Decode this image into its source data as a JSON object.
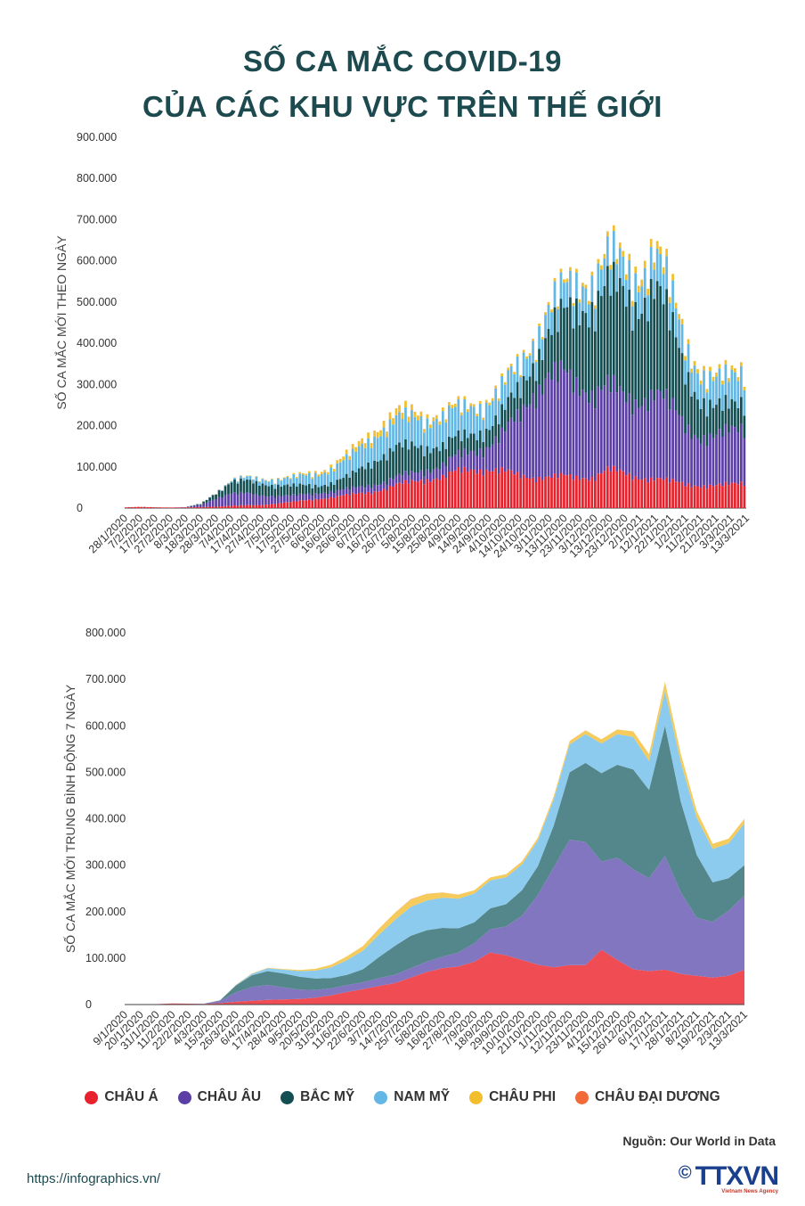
{
  "title_line1": "SỐ CA MẮC COVID-19",
  "title_line2": "CỦA CÁC KHU VỰC TRÊN THẾ GIỚI",
  "legend": [
    {
      "label": "CHÂU Á",
      "color": "#e8212c"
    },
    {
      "label": "CHÂU ÂU",
      "color": "#5b3ea6"
    },
    {
      "label": "BẮC MỸ",
      "color": "#134e52"
    },
    {
      "label": "NAM MỸ",
      "color": "#62b7e4"
    },
    {
      "label": "CHÂU PHI",
      "color": "#f2be2c"
    },
    {
      "label": "CHÂU ĐẠI DƯƠNG",
      "color": "#f26a3a"
    }
  ],
  "source": "Nguồn: Our World in Data",
  "url": "https://infographics.vn/",
  "logo": {
    "copyright": "©",
    "brand": "TTXVN",
    "subtitle": "Vietnam News Agency"
  },
  "chart_data": [
    {
      "type": "bar",
      "stacked": true,
      "ylabel": "SỐ CA MẮC MỚI THEO NGÀY",
      "ylim": [
        0,
        900000
      ],
      "yticks": [
        "0",
        "100.000",
        "200.000",
        "300.000",
        "400.000",
        "500.000",
        "600.000",
        "700.000",
        "800.000",
        "900.000"
      ],
      "categories": [
        "28/1/2020",
        "7/2/2020",
        "17/2/2020",
        "27/2/2020",
        "8/3/2020",
        "18/3/2020",
        "28/3/2020",
        "7/4/2020",
        "17/4/2020",
        "27/4/2020",
        "7/5/2020",
        "17/5/2020",
        "27/5/2020",
        "6/6/2020",
        "16/6/2020",
        "26/6/2020",
        "6/7/2020",
        "16/7/2020",
        "26/7/2020",
        "5/8/2020",
        "15/8/2020",
        "25/8/2020",
        "4/9/2020",
        "14/9/2020",
        "24/9/2020",
        "4/10/2020",
        "14/10/2020",
        "24/10/2020",
        "3/11/2020",
        "13/11/2020",
        "23/11/2020",
        "3/12/2020",
        "13/12/2020",
        "23/12/2020",
        "2/1/2021",
        "12/1/2021",
        "22/1/2021",
        "1/2/2021",
        "11/2/2021",
        "21/2/2021",
        "3/3/2021",
        "13/3/2021"
      ],
      "series": [
        {
          "name": "CHÂU Á",
          "values": [
            2000,
            3000,
            2000,
            1500,
            1500,
            2500,
            4000,
            6000,
            7000,
            8000,
            12000,
            16000,
            20000,
            25000,
            30000,
            35000,
            40000,
            48000,
            60000,
            68000,
            75000,
            80000,
            95000,
            100000,
            100000,
            95000,
            85000,
            80000,
            80000,
            82000,
            80000,
            80000,
            100000,
            90000,
            80000,
            75000,
            70000,
            65000,
            58000,
            55000,
            62000,
            70000
          ]
        },
        {
          "name": "CHÂU ÂU",
          "values": [
            0,
            0,
            0,
            0,
            1000,
            6000,
            22000,
            32000,
            30000,
            25000,
            20000,
            16000,
            15000,
            15000,
            15000,
            15000,
            18000,
            18000,
            20000,
            22000,
            25000,
            30000,
            40000,
            48000,
            60000,
            95000,
            150000,
            220000,
            260000,
            260000,
            240000,
            220000,
            215000,
            195000,
            200000,
            220000,
            200000,
            160000,
            125000,
            120000,
            140000,
            150000
          ]
        },
        {
          "name": "BẮC MỸ",
          "values": [
            0,
            0,
            0,
            0,
            0,
            3000,
            15000,
            30000,
            32000,
            30000,
            28000,
            25000,
            23000,
            20000,
            25000,
            35000,
            55000,
            70000,
            75000,
            70000,
            60000,
            50000,
            45000,
            45000,
            48000,
            55000,
            65000,
            80000,
            110000,
            150000,
            200000,
            230000,
            260000,
            260000,
            250000,
            280000,
            220000,
            150000,
            100000,
            75000,
            65000,
            70000
          ]
        },
        {
          "name": "NAM MỸ",
          "values": [
            0,
            0,
            0,
            0,
            0,
            0,
            1000,
            3000,
            8000,
            12000,
            15000,
            20000,
            26000,
            32000,
            40000,
            50000,
            60000,
            68000,
            72000,
            75000,
            72000,
            75000,
            72000,
            70000,
            68000,
            65000,
            60000,
            58000,
            60000,
            62000,
            65000,
            68000,
            70000,
            72000,
            75000,
            80000,
            75000,
            72000,
            70000,
            68000,
            72000,
            80000
          ]
        },
        {
          "name": "CHÂU PHI",
          "values": [
            0,
            0,
            0,
            0,
            0,
            0,
            300,
            600,
            900,
            1200,
            1500,
            2500,
            4000,
            6000,
            8000,
            11000,
            14000,
            16000,
            16000,
            13000,
            10000,
            8500,
            7500,
            7000,
            7000,
            6500,
            6000,
            6000,
            7000,
            8000,
            9000,
            10000,
            12000,
            14000,
            18000,
            20000,
            16000,
            13000,
            11000,
            10000,
            10000,
            11000
          ]
        },
        {
          "name": "CHÂU ĐẠI DƯƠNG",
          "values": [
            0,
            0,
            0,
            0,
            0,
            0,
            300,
            200,
            100,
            50,
            20,
            20,
            30,
            50,
            100,
            200,
            300,
            500,
            600,
            500,
            300,
            150,
            60,
            40,
            30,
            30,
            30,
            30,
            30,
            30,
            20,
            20,
            30,
            40,
            50,
            50,
            40,
            30,
            20,
            20,
            20,
            20
          ]
        }
      ]
    },
    {
      "type": "area",
      "stacked": true,
      "ylabel": "SỐ CA MẮC MỚI TRUNG BÌNH ĐỘNG 7 NGÀY",
      "ylim": [
        0,
        800000
      ],
      "yticks": [
        "0",
        "100.000",
        "200.000",
        "300.000",
        "400.000",
        "500.000",
        "600.000",
        "700.000",
        "800.000"
      ],
      "categories": [
        "9/1/2020",
        "20/1/2020",
        "31/1/2020",
        "11/2/2020",
        "22/2/2020",
        "4/3/2020",
        "15/3/2020",
        "26/3/2020",
        "6/4/2020",
        "17/4/2020",
        "28/4/2020",
        "9/5/2020",
        "20/5/2020",
        "31/5/2020",
        "11/6/2020",
        "22/6/2020",
        "3/7/2020",
        "14/7/2020",
        "25/7/2020",
        "5/8/2020",
        "16/8/2020",
        "27/8/2020",
        "7/9/2020",
        "18/9/2020",
        "29/9/2020",
        "10/10/2020",
        "21/10/2020",
        "1/11/2020",
        "12/11/2020",
        "23/11/2020",
        "4/12/2020",
        "15/12/2020",
        "26/12/2020",
        "6/1/2021",
        "17/1/2021",
        "28/1/2021",
        "8/2/2021",
        "19/2/2021",
        "2/3/2021",
        "13/3/2021"
      ],
      "series": [
        {
          "name": "CHÂU Á",
          "values": [
            0,
            0,
            1000,
            2500,
            2000,
            1500,
            3000,
            6000,
            8000,
            10000,
            11000,
            12000,
            15000,
            20000,
            27000,
            33000,
            40000,
            46000,
            58000,
            70000,
            78000,
            82000,
            92000,
            112000,
            106000,
            96000,
            86000,
            80000,
            85000,
            85000,
            118000,
            96000,
            76000,
            72000,
            75000,
            66000,
            62000,
            58000,
            62000,
            75000
          ]
        },
        {
          "name": "CHÂU ÂU",
          "values": [
            0,
            0,
            0,
            0,
            0,
            500,
            5000,
            20000,
            30000,
            32000,
            26000,
            20000,
            16000,
            15000,
            15000,
            15000,
            17000,
            18000,
            20000,
            22000,
            25000,
            30000,
            40000,
            50000,
            62000,
            95000,
            150000,
            215000,
            270000,
            265000,
            190000,
            220000,
            215000,
            200000,
            245000,
            175000,
            125000,
            120000,
            140000,
            160000
          ]
        },
        {
          "name": "BẮC MỸ",
          "values": [
            0,
            0,
            0,
            0,
            0,
            0,
            1000,
            15000,
            25000,
            30000,
            30000,
            28000,
            25000,
            22000,
            22000,
            28000,
            45000,
            62000,
            70000,
            68000,
            62000,
            52000,
            45000,
            45000,
            48000,
            55000,
            62000,
            90000,
            145000,
            170000,
            190000,
            200000,
            215000,
            190000,
            280000,
            195000,
            135000,
            85000,
            70000,
            65000
          ]
        },
        {
          "name": "NAM MỸ",
          "values": [
            0,
            0,
            0,
            0,
            0,
            0,
            0,
            1000,
            3000,
            6000,
            8000,
            12000,
            17000,
            23000,
            32000,
            40000,
            48000,
            56000,
            62000,
            64000,
            65000,
            64000,
            62000,
            60000,
            58000,
            56000,
            55000,
            57000,
            60000,
            62000,
            64000,
            66000,
            70000,
            62000,
            75000,
            85000,
            80000,
            72000,
            75000,
            90000
          ]
        },
        {
          "name": "CHÂU PHI",
          "values": [
            0,
            0,
            0,
            0,
            0,
            0,
            0,
            500,
            800,
            1000,
            1500,
            2500,
            4000,
            6000,
            8000,
            10000,
            13000,
            15000,
            16000,
            14000,
            11000,
            8500,
            7000,
            6500,
            6500,
            6000,
            6000,
            6000,
            7000,
            8000,
            9000,
            10000,
            12000,
            15000,
            20000,
            18000,
            14000,
            11000,
            10000,
            10000
          ]
        },
        {
          "name": "CHÂU ĐẠI DƯƠNG",
          "values": [
            0,
            0,
            0,
            0,
            0,
            0,
            100,
            250,
            200,
            100,
            50,
            20,
            20,
            30,
            50,
            100,
            200,
            400,
            600,
            500,
            300,
            150,
            60,
            40,
            30,
            30,
            30,
            30,
            30,
            30,
            20,
            20,
            30,
            40,
            50,
            50,
            40,
            30,
            20,
            20
          ]
        }
      ]
    }
  ]
}
